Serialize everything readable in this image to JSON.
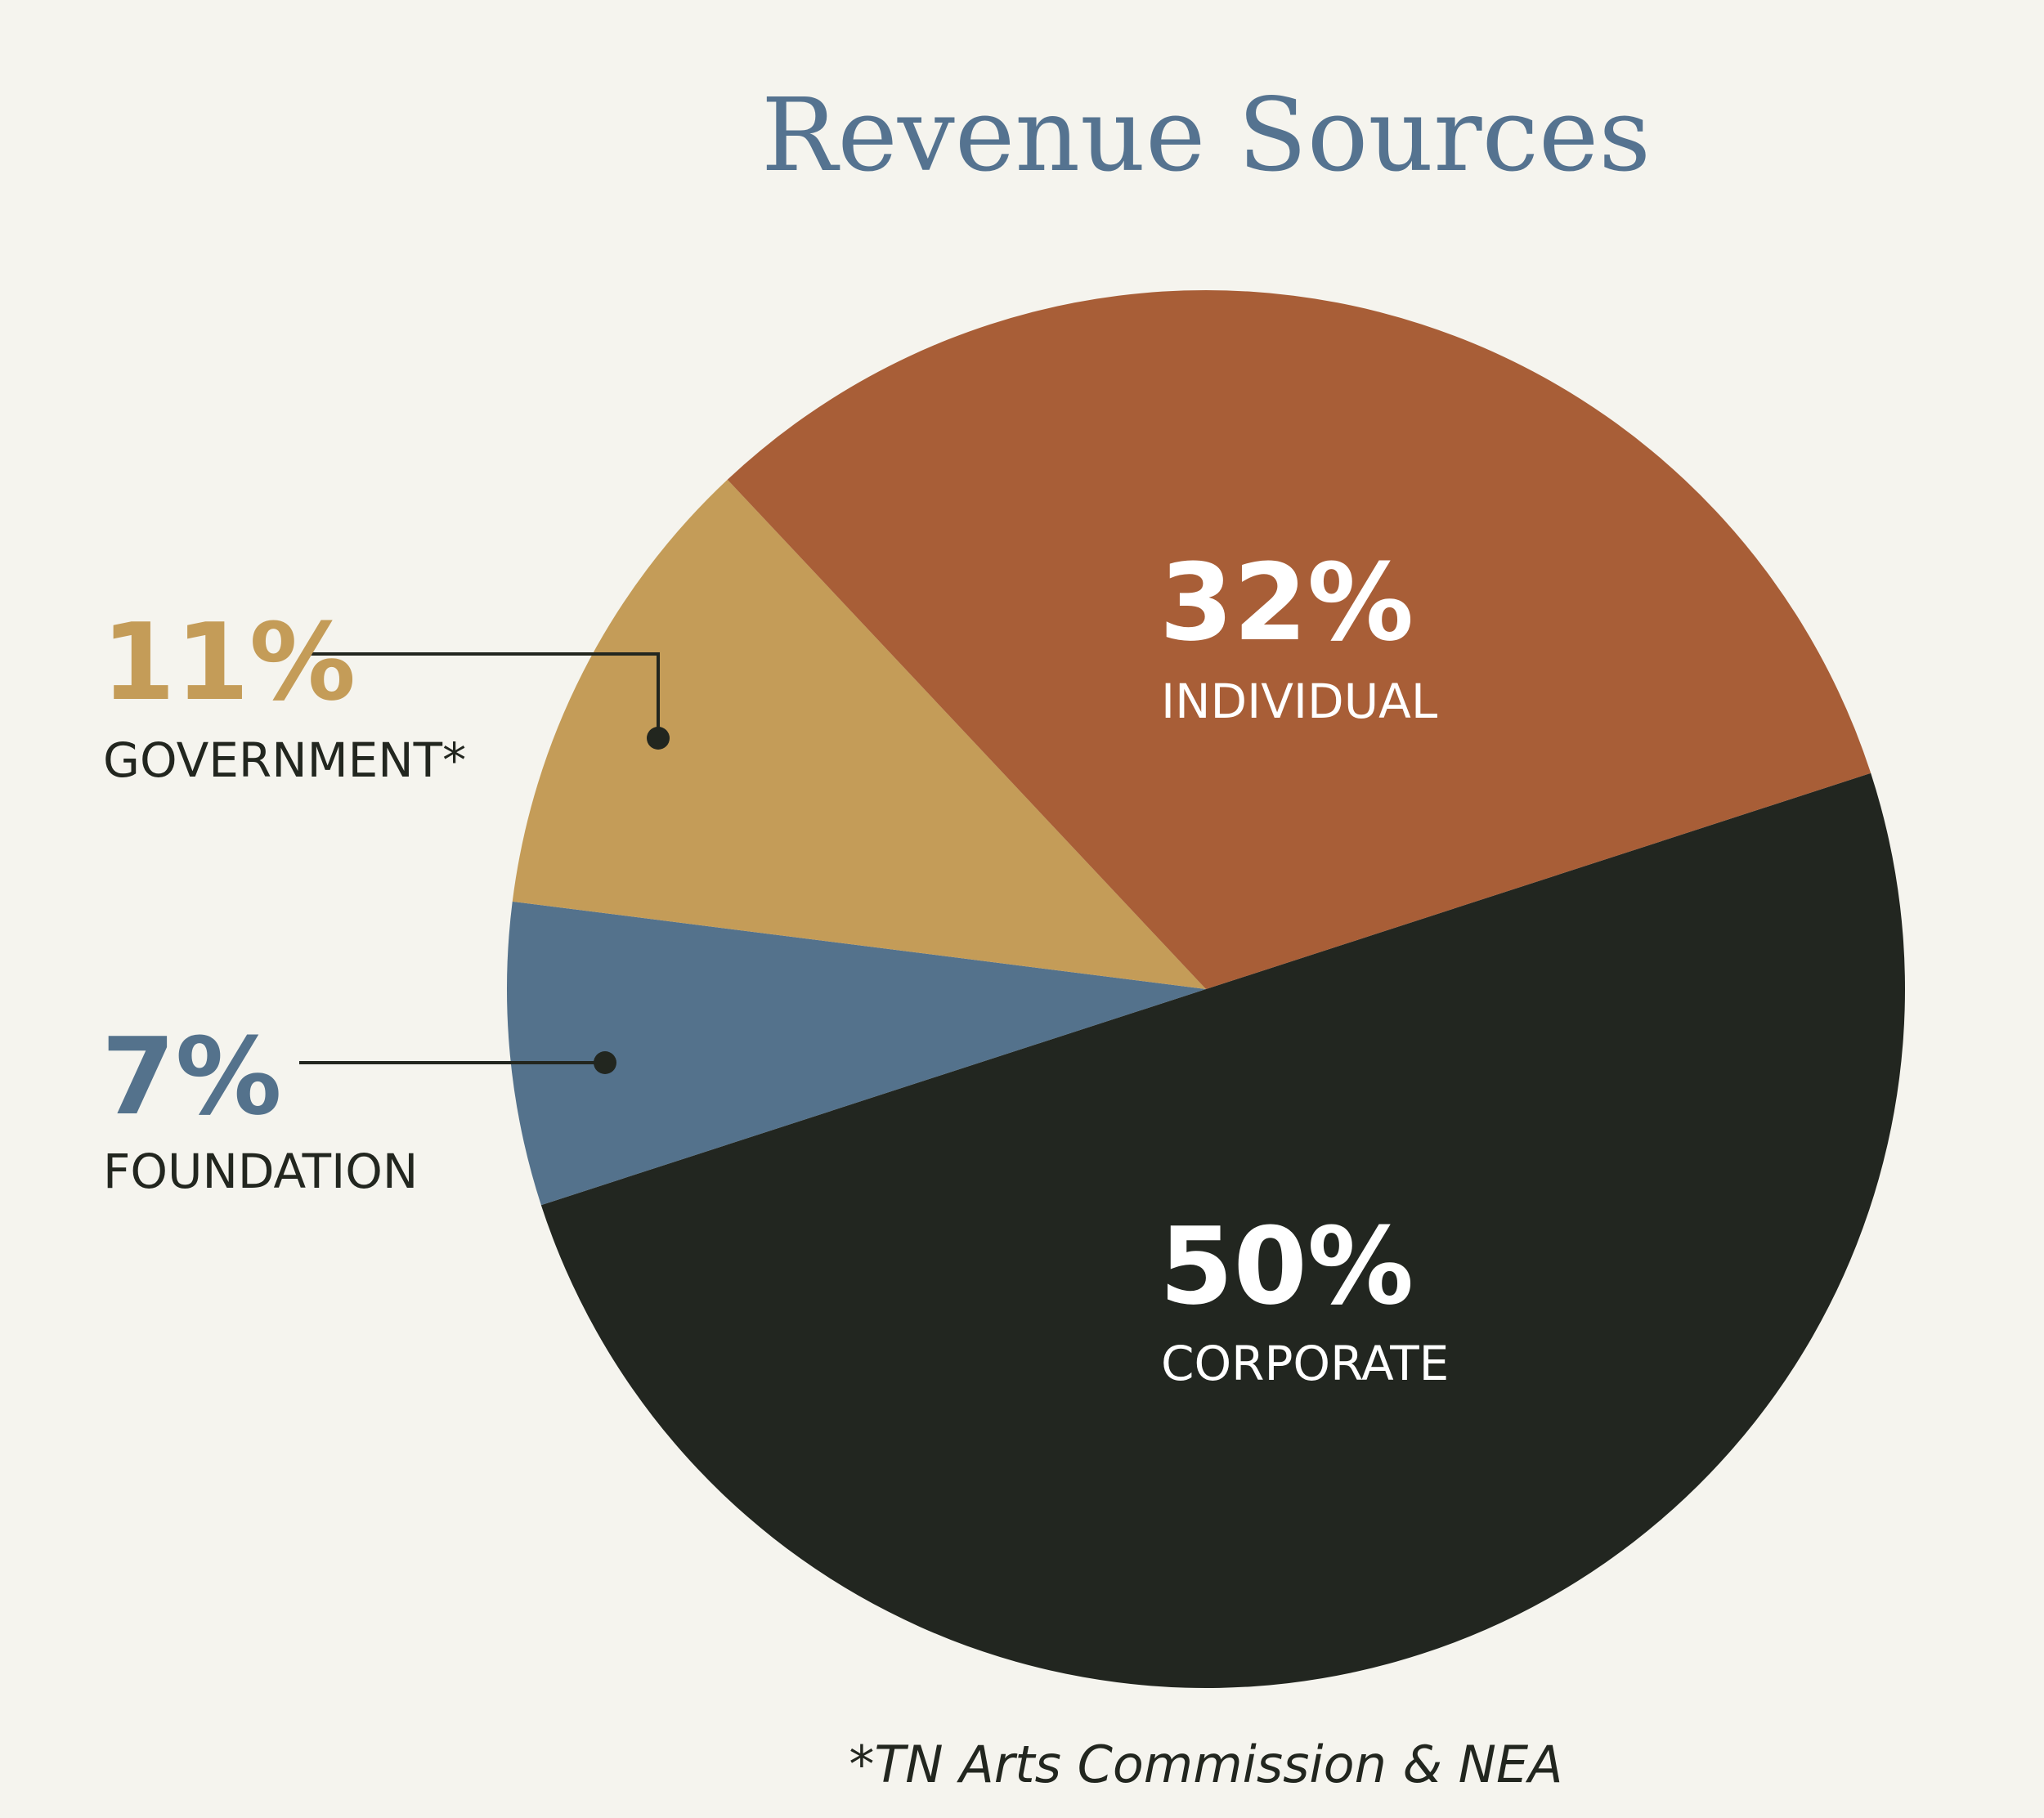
{
  "chart_data": {
    "type": "pie",
    "title": "Revenue Sources",
    "slices": [
      {
        "label": "CORPORATE",
        "value": 50,
        "value_label": "50%",
        "color": "#222620",
        "label_color": "#ffffff",
        "label_inside": true
      },
      {
        "label": "FOUNDATION",
        "value": 7,
        "value_label": "7%",
        "color": "#54728c",
        "pct_color": "#54728c",
        "label_color": "#22261f",
        "label_inside": false
      },
      {
        "label": "GOVERNMENT*",
        "value": 11,
        "value_label": "11%",
        "color": "#c49c58",
        "pct_color": "#c49c58",
        "label_color": "#22261f",
        "label_inside": false
      },
      {
        "label": "INDIVIDUAL",
        "value": 32,
        "value_label": "32%",
        "color": "#a85e37",
        "label_color": "#ffffff",
        "label_inside": true
      }
    ],
    "footnote": "*TN Arts Commission & NEA"
  }
}
